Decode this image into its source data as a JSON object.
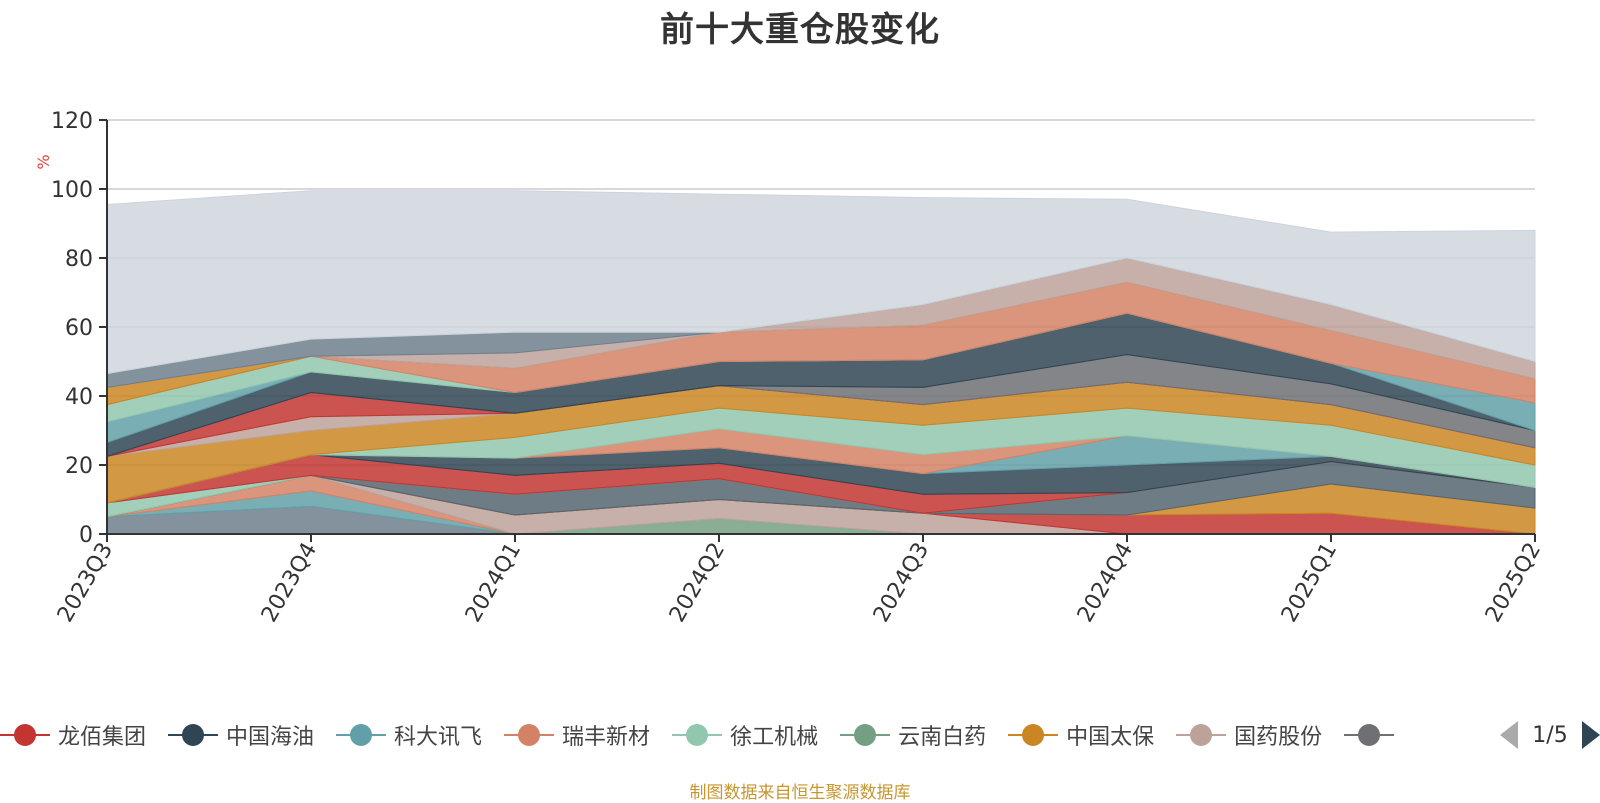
{
  "page_title": "前十大重仓股变化",
  "source_note": "制图数据来自恒生聚源数据库",
  "legend_pager": "1/5",
  "chart_data": {
    "type": "area",
    "title": "前十大重仓股变化",
    "ylabel": "%",
    "ylim": [
      0,
      120
    ],
    "yticks": [
      0,
      20,
      40,
      60,
      80,
      100,
      120
    ],
    "categories": [
      "2023Q3",
      "2023Q4",
      "2024Q1",
      "2024Q2",
      "2024Q3",
      "2024Q4",
      "2025Q1",
      "2025Q2"
    ],
    "grid": true,
    "legend_position": "bottom",
    "series": [
      {
        "name": "",
        "color": "#6e7f8d",
        "values": [
          5,
          8,
          0,
          0,
          0,
          0,
          0,
          0
        ]
      },
      {
        "name": "科大讯飞",
        "color": "#61a0a8",
        "values": [
          0,
          4.5,
          0,
          0,
          0,
          0,
          0,
          0
        ]
      },
      {
        "name": "瑞丰新材",
        "color": "#d48265",
        "values": [
          0,
          4.5,
          0,
          0,
          0,
          0,
          0,
          0
        ]
      },
      {
        "name": "云南白药",
        "color": "#749f83",
        "values": [
          0,
          0,
          0,
          4.5,
          0,
          0,
          0,
          0
        ]
      },
      {
        "name": "国药股份",
        "color": "#bda29a",
        "values": [
          0,
          0,
          5.5,
          5.5,
          6,
          0,
          0,
          0
        ]
      },
      {
        "name": "龙佰集团",
        "color": "#c23531",
        "values": [
          0,
          0,
          0,
          0,
          0,
          5.5,
          6,
          0
        ]
      },
      {
        "name": "中国太保",
        "color": "#ca8622",
        "values": [
          0,
          0,
          0,
          0,
          0,
          0,
          8.5,
          7.5
        ]
      },
      {
        "name": "",
        "color": "#546570",
        "values": [
          0,
          0,
          6,
          6,
          0,
          6.5,
          6.5,
          6
        ]
      },
      {
        "name": "",
        "color": "#6e7074",
        "values": [
          0,
          0,
          0,
          0,
          0,
          0,
          0,
          0
        ]
      },
      {
        "name": "",
        "color": "#91c7ae",
        "values": [
          4,
          0,
          0,
          0,
          0,
          0,
          0,
          0
        ]
      },
      {
        "name": "",
        "color": "#c23531",
        "values": [
          0,
          6,
          5.5,
          4.5,
          5.5,
          0,
          0,
          0
        ]
      },
      {
        "name": "",
        "color": "#2f4554",
        "values": [
          0,
          0,
          5,
          4.5,
          6,
          8,
          1.5,
          0
        ]
      },
      {
        "name": "",
        "color": "#61a0a8",
        "values": [
          0,
          0,
          0,
          0,
          0,
          8.5,
          0,
          0
        ]
      },
      {
        "name": "",
        "color": "#d48265",
        "values": [
          0,
          0,
          0,
          5.5,
          5.5,
          0,
          0,
          0
        ]
      },
      {
        "name": "",
        "color": "#91c7ae",
        "values": [
          0,
          0,
          6,
          6,
          8.5,
          8,
          9,
          6.5
        ]
      },
      {
        "name": "",
        "color": "#ca8622",
        "values": [
          13.5,
          7,
          7,
          6.5,
          6,
          7.5,
          6,
          5
        ]
      },
      {
        "name": "",
        "color": "#bda29a",
        "values": [
          0,
          4,
          0,
          0,
          0,
          0,
          0,
          0
        ]
      },
      {
        "name": "",
        "color": "#c23531",
        "values": [
          0,
          7,
          0,
          0,
          0,
          0,
          0,
          0
        ]
      },
      {
        "name": "",
        "color": "#6e7074",
        "values": [
          0,
          0,
          0,
          0,
          5,
          8,
          6,
          5
        ]
      },
      {
        "name": "",
        "color": "#2f4554",
        "values": [
          4,
          6,
          6,
          7,
          8,
          12,
          6,
          0
        ]
      },
      {
        "name": "",
        "color": "#61a0a8",
        "values": [
          6,
          0,
          0,
          0,
          0,
          0,
          0,
          8
        ]
      },
      {
        "name": "",
        "color": "#91c7ae",
        "values": [
          5,
          4.5,
          0,
          0,
          0,
          0,
          0,
          0
        ]
      },
      {
        "name": "",
        "color": "#d48265",
        "values": [
          0,
          0,
          7,
          8.5,
          10,
          9,
          9.5,
          7
        ]
      },
      {
        "name": "",
        "color": "#ca8622",
        "values": [
          5,
          0,
          0,
          0,
          0,
          0,
          0,
          0
        ]
      },
      {
        "name": "",
        "color": "#bda29a",
        "values": [
          0,
          0,
          4.5,
          0,
          6,
          7,
          7.5,
          5
        ]
      },
      {
        "name": "",
        "color": "#6e7f8d",
        "values": [
          4,
          5,
          6,
          0,
          0,
          0,
          0,
          0
        ]
      },
      {
        "name": "",
        "color": "#cdd3dc",
        "values": [
          49,
          43,
          41,
          40,
          31,
          17,
          21,
          38
        ]
      }
    ],
    "legend": [
      {
        "name": "龙佰集团",
        "color": "#c23531"
      },
      {
        "name": "中国海油",
        "color": "#2f4554"
      },
      {
        "name": "科大讯飞",
        "color": "#61a0a8"
      },
      {
        "name": "瑞丰新材",
        "color": "#d48265"
      },
      {
        "name": "徐工机械",
        "color": "#91c7ae"
      },
      {
        "name": "云南白药",
        "color": "#749f83"
      },
      {
        "name": "中国太保",
        "color": "#ca8622"
      },
      {
        "name": "国药股份",
        "color": "#bda29a"
      },
      {
        "name": "",
        "color": "#6e7074"
      }
    ]
  }
}
